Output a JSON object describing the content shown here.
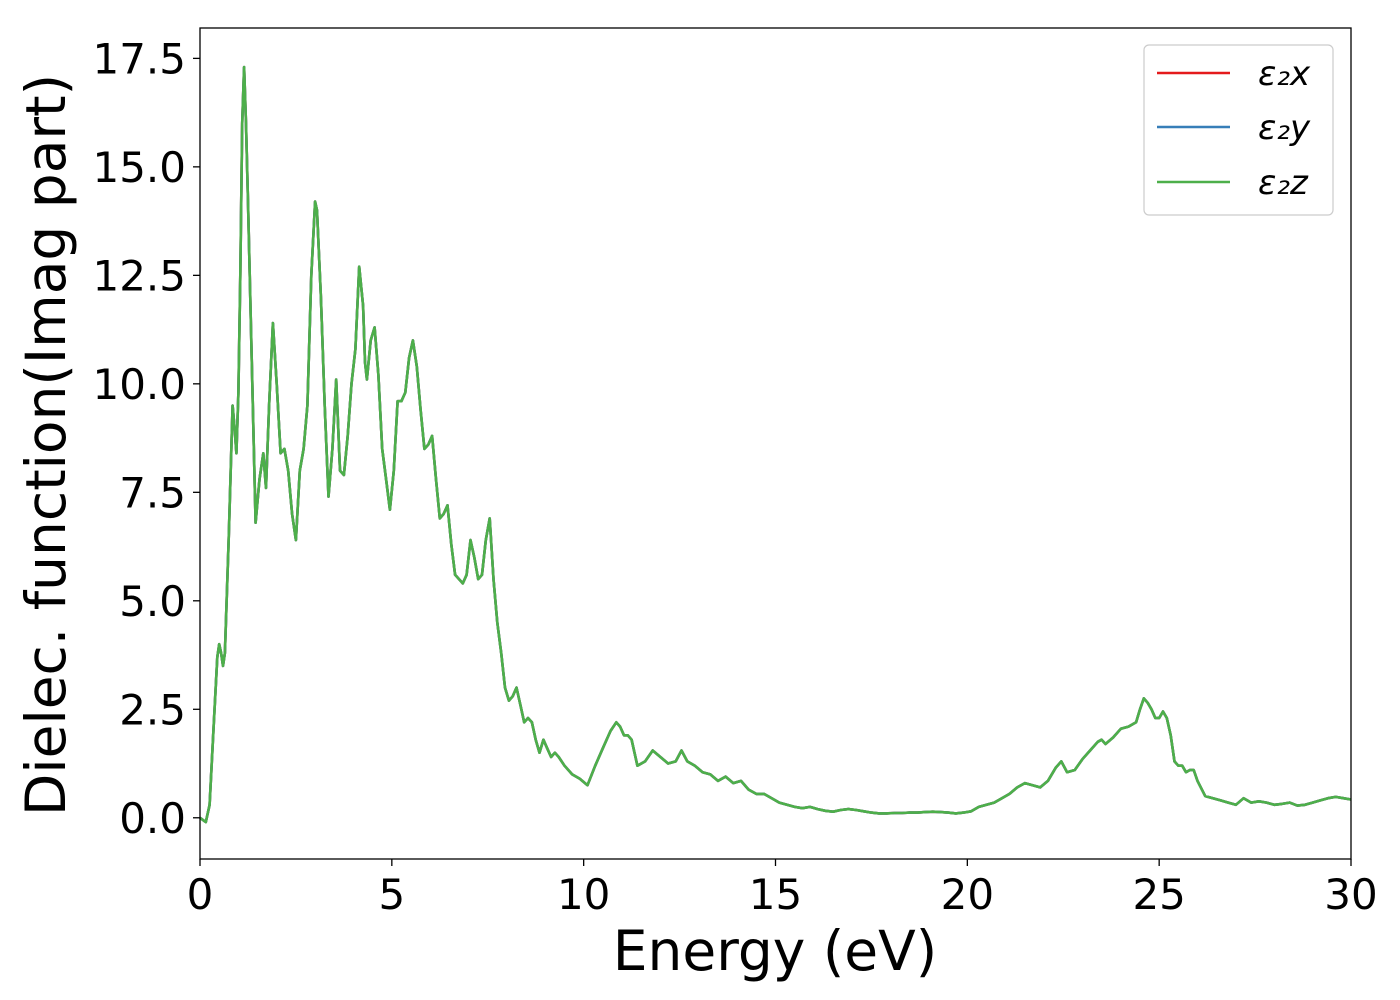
{
  "chart_data": {
    "type": "line",
    "xlabel": "Energy (eV)",
    "ylabel": "Dielec. function(Imag part)",
    "xlim": [
      0,
      30
    ],
    "ylim": [
      -0.95,
      18.2
    ],
    "xticks": [
      0,
      5,
      10,
      15,
      20,
      25,
      30
    ],
    "xtick_labels": [
      "0",
      "5",
      "10",
      "15",
      "20",
      "25",
      "30"
    ],
    "yticks": [
      0.0,
      2.5,
      5.0,
      7.5,
      10.0,
      12.5,
      15.0,
      17.5
    ],
    "ytick_labels": [
      "0.0",
      "2.5",
      "5.0",
      "7.5",
      "10.0",
      "12.5",
      "15.0",
      "17.5"
    ],
    "grid": false,
    "legend_position": "top-right",
    "x": [
      0.0,
      0.15,
      0.25,
      0.35,
      0.45,
      0.5,
      0.55,
      0.6,
      0.65,
      0.75,
      0.85,
      0.9,
      0.95,
      1.0,
      1.05,
      1.1,
      1.15,
      1.2,
      1.25,
      1.35,
      1.45,
      1.55,
      1.65,
      1.72,
      1.8,
      1.9,
      2.0,
      2.1,
      2.2,
      2.3,
      2.4,
      2.5,
      2.6,
      2.7,
      2.8,
      2.9,
      3.0,
      3.05,
      3.15,
      3.25,
      3.35,
      3.45,
      3.55,
      3.65,
      3.75,
      3.85,
      3.95,
      4.05,
      4.15,
      4.25,
      4.3,
      4.35,
      4.45,
      4.55,
      4.65,
      4.75,
      4.85,
      4.95,
      5.05,
      5.15,
      5.25,
      5.35,
      5.45,
      5.55,
      5.65,
      5.75,
      5.85,
      5.95,
      6.05,
      6.15,
      6.25,
      6.35,
      6.45,
      6.55,
      6.65,
      6.75,
      6.85,
      6.95,
      7.05,
      7.15,
      7.25,
      7.35,
      7.45,
      7.55,
      7.65,
      7.75,
      7.85,
      7.95,
      8.05,
      8.15,
      8.25,
      8.35,
      8.45,
      8.55,
      8.65,
      8.75,
      8.85,
      8.95,
      9.05,
      9.15,
      9.25,
      9.35,
      9.5,
      9.7,
      9.9,
      10.1,
      10.3,
      10.5,
      10.7,
      10.85,
      10.95,
      11.05,
      11.15,
      11.25,
      11.4,
      11.6,
      11.8,
      12.0,
      12.2,
      12.4,
      12.55,
      12.7,
      12.9,
      13.1,
      13.3,
      13.5,
      13.7,
      13.9,
      14.1,
      14.3,
      14.5,
      14.7,
      14.9,
      15.1,
      15.3,
      15.5,
      15.7,
      15.9,
      16.1,
      16.3,
      16.5,
      16.7,
      16.9,
      17.1,
      17.3,
      17.5,
      17.7,
      17.9,
      18.1,
      18.3,
      18.5,
      18.7,
      18.9,
      19.1,
      19.3,
      19.5,
      19.7,
      19.9,
      20.1,
      20.3,
      20.5,
      20.7,
      20.9,
      21.1,
      21.3,
      21.5,
      21.7,
      21.9,
      22.1,
      22.3,
      22.45,
      22.6,
      22.8,
      23.0,
      23.2,
      23.4,
      23.5,
      23.6,
      23.8,
      24.0,
      24.2,
      24.4,
      24.5,
      24.6,
      24.7,
      24.8,
      24.9,
      25.0,
      25.1,
      25.2,
      25.3,
      25.4,
      25.5,
      25.6,
      25.7,
      25.8,
      25.9,
      26.0,
      26.2,
      26.4,
      26.6,
      26.8,
      27.0,
      27.2,
      27.4,
      27.6,
      27.8,
      28.0,
      28.2,
      28.4,
      28.6,
      28.8,
      29.0,
      29.2,
      29.4,
      29.6,
      29.8,
      30.0
    ],
    "y": [
      0.0,
      -0.1,
      0.3,
      2.0,
      3.7,
      4.0,
      3.8,
      3.5,
      3.8,
      6.5,
      9.5,
      9.0,
      8.4,
      9.8,
      12.5,
      16.0,
      17.3,
      16.0,
      14.2,
      10.5,
      6.8,
      7.8,
      8.4,
      7.6,
      9.5,
      11.4,
      10.0,
      8.4,
      8.5,
      8.0,
      7.0,
      6.4,
      8.0,
      8.5,
      9.5,
      12.5,
      14.2,
      14.0,
      12.0,
      9.5,
      7.4,
      8.5,
      10.1,
      8.0,
      7.9,
      8.8,
      10.0,
      10.8,
      12.7,
      11.8,
      10.5,
      10.1,
      11.0,
      11.3,
      10.2,
      8.5,
      7.8,
      7.1,
      8.0,
      9.6,
      9.6,
      9.8,
      10.6,
      11.0,
      10.4,
      9.4,
      8.5,
      8.6,
      8.8,
      7.8,
      6.9,
      7.0,
      7.2,
      6.3,
      5.6,
      5.5,
      5.4,
      5.6,
      6.4,
      6.0,
      5.5,
      5.6,
      6.4,
      6.9,
      5.5,
      4.5,
      3.8,
      3.0,
      2.7,
      2.8,
      3.0,
      2.6,
      2.2,
      2.3,
      2.2,
      1.8,
      1.5,
      1.8,
      1.6,
      1.4,
      1.5,
      1.4,
      1.2,
      1.0,
      0.9,
      0.75,
      1.2,
      1.6,
      2.0,
      2.2,
      2.1,
      1.9,
      1.9,
      1.8,
      1.2,
      1.3,
      1.55,
      1.4,
      1.25,
      1.3,
      1.55,
      1.3,
      1.2,
      1.05,
      1.0,
      0.85,
      0.95,
      0.8,
      0.85,
      0.65,
      0.55,
      0.55,
      0.45,
      0.35,
      0.3,
      0.25,
      0.22,
      0.25,
      0.2,
      0.16,
      0.14,
      0.18,
      0.2,
      0.18,
      0.15,
      0.12,
      0.1,
      0.1,
      0.11,
      0.11,
      0.12,
      0.12,
      0.13,
      0.14,
      0.13,
      0.12,
      0.1,
      0.12,
      0.15,
      0.25,
      0.3,
      0.35,
      0.45,
      0.55,
      0.7,
      0.8,
      0.75,
      0.7,
      0.85,
      1.15,
      1.3,
      1.05,
      1.1,
      1.35,
      1.55,
      1.75,
      1.8,
      1.7,
      1.85,
      2.05,
      2.1,
      2.2,
      2.5,
      2.75,
      2.65,
      2.5,
      2.3,
      2.3,
      2.45,
      2.3,
      1.9,
      1.3,
      1.2,
      1.2,
      1.05,
      1.1,
      1.1,
      0.85,
      0.5,
      0.45,
      0.4,
      0.35,
      0.3,
      0.45,
      0.35,
      0.38,
      0.35,
      0.3,
      0.32,
      0.35,
      0.28,
      0.3,
      0.35,
      0.4,
      0.45,
      0.48,
      0.45,
      0.42
    ],
    "series": [
      {
        "name": "ε₂x",
        "color": "#e41a1c"
      },
      {
        "name": "ε₂y",
        "color": "#377eb8"
      },
      {
        "name": "ε₂z",
        "color": "#4daf4a"
      }
    ]
  }
}
